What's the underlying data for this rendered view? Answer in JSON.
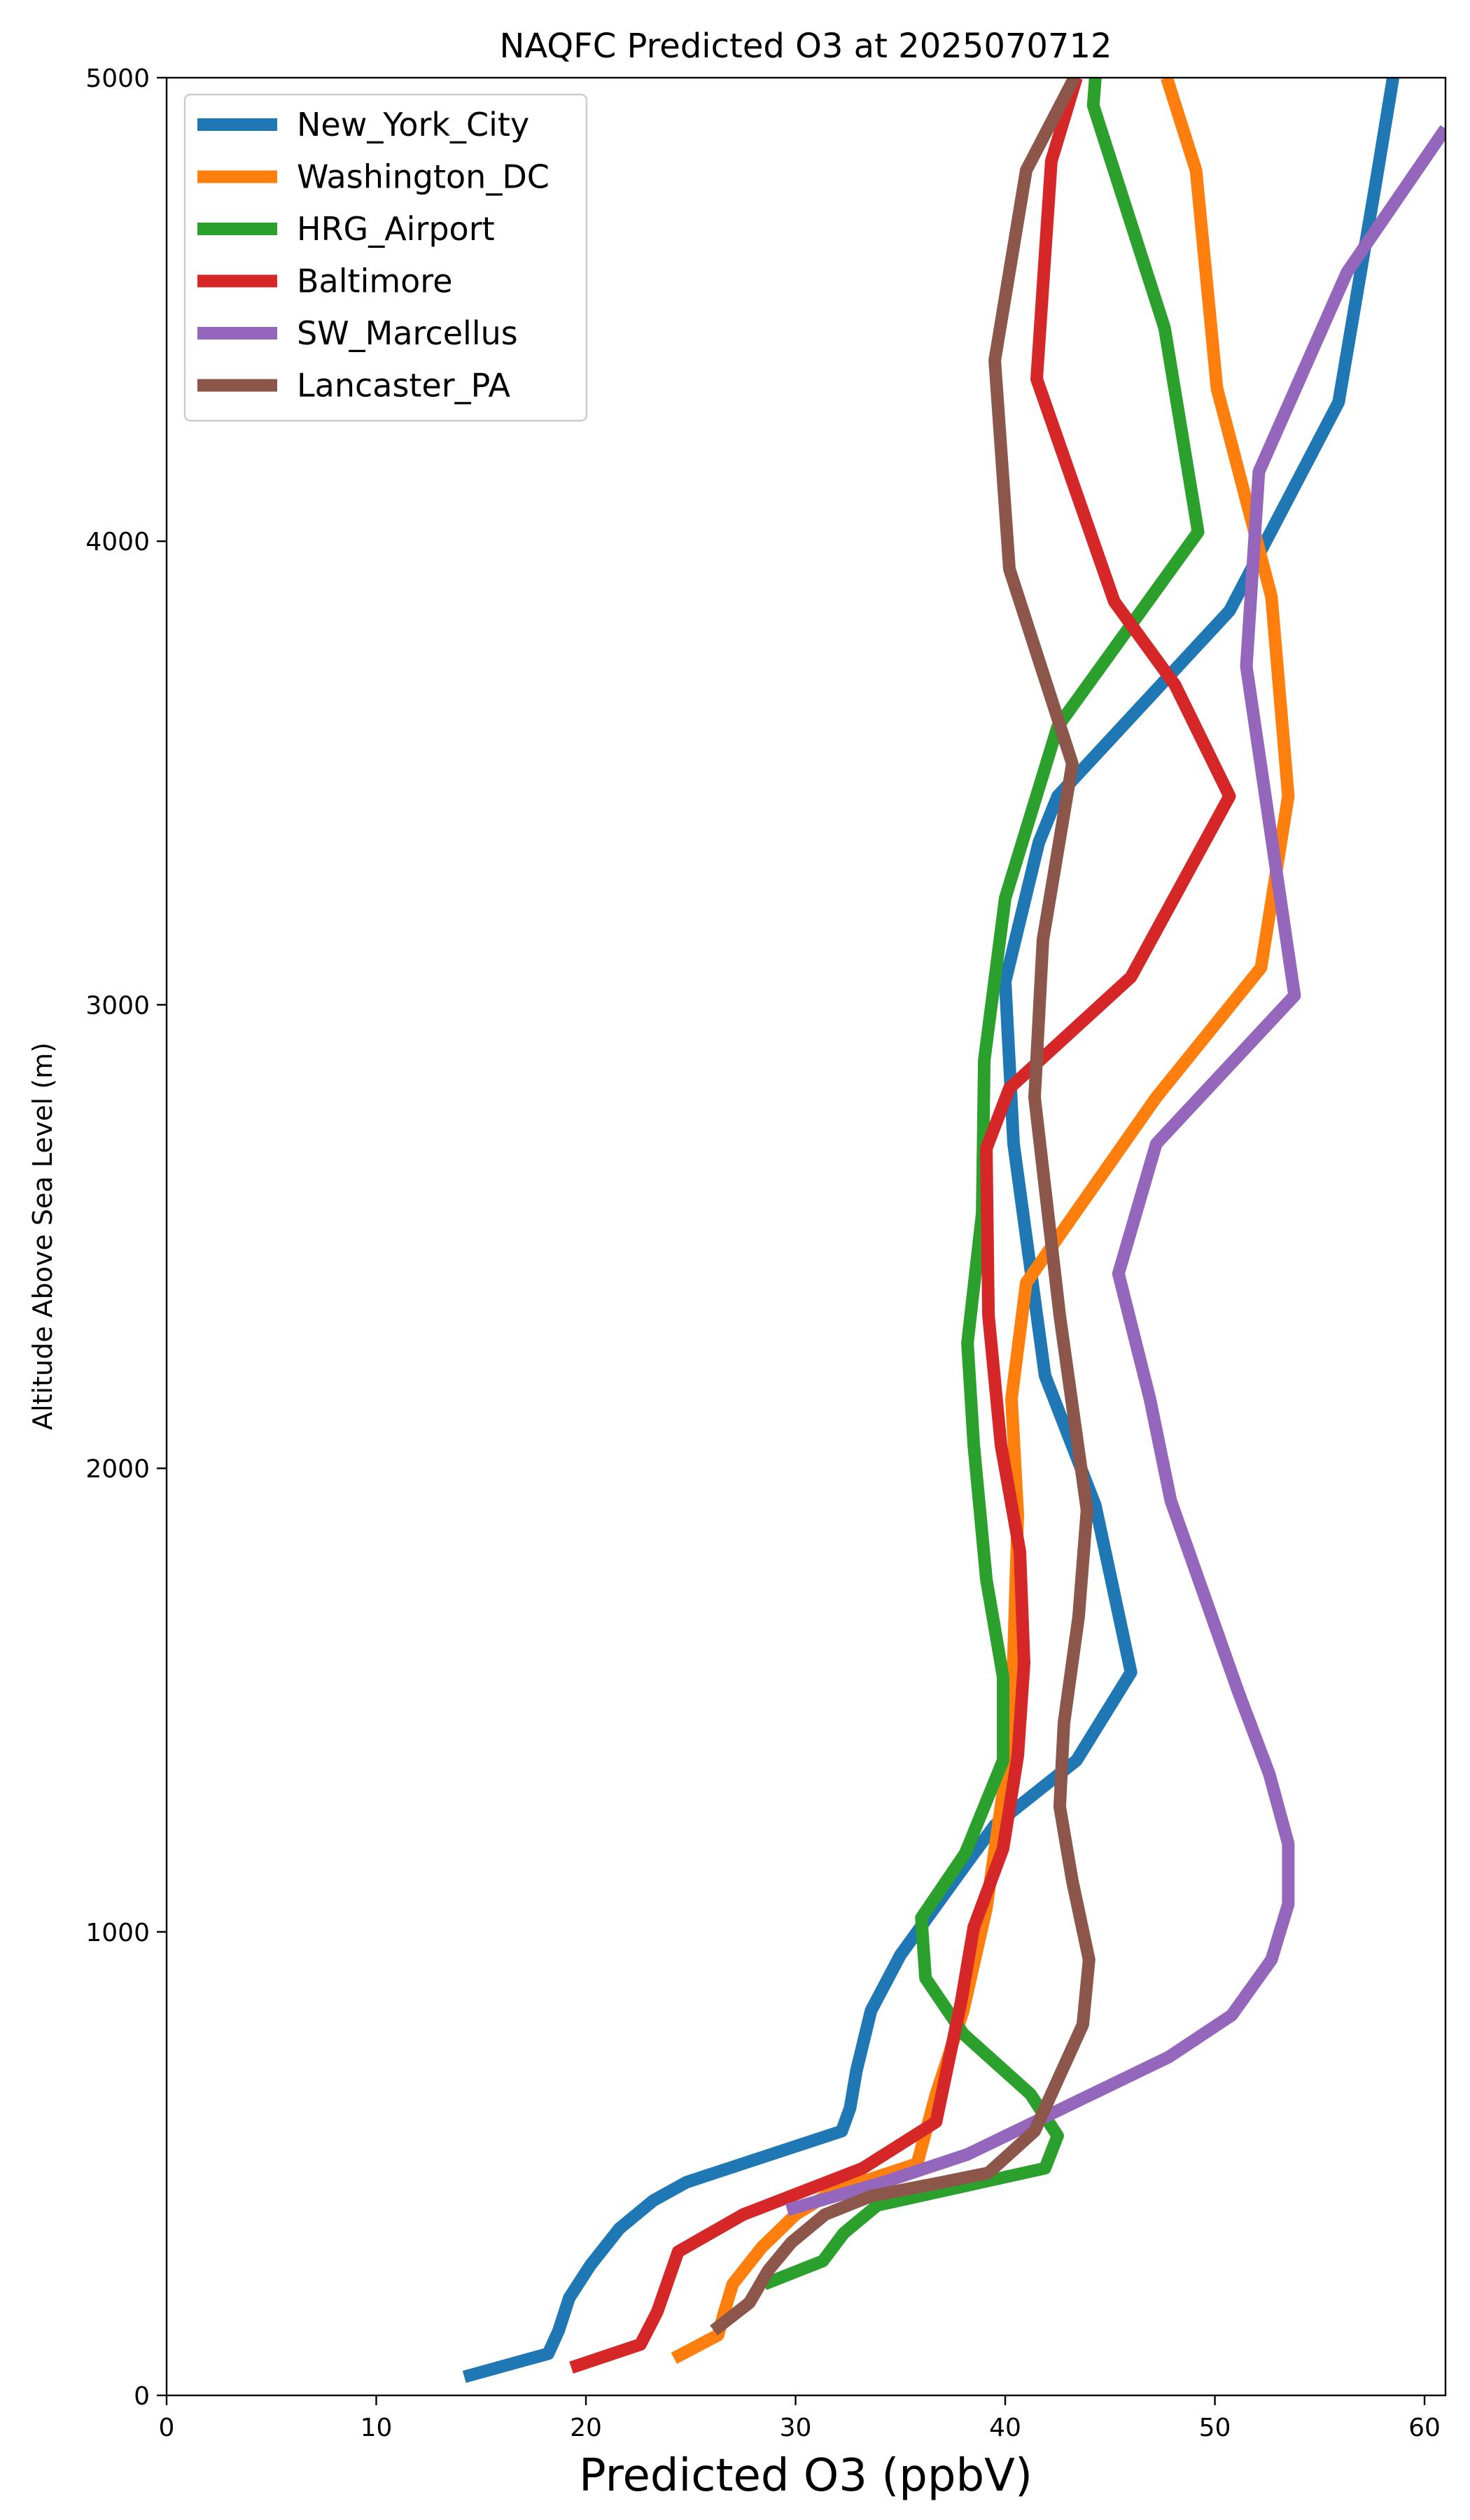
{
  "chart_data": {
    "type": "line",
    "title": "NAQFC Predicted O3 at 2025070712",
    "xlabel": "Predicted O3 (ppbV)",
    "ylabel": "Altitude Above Sea Level (m)",
    "xlim": [
      0,
      61
    ],
    "ylim": [
      0,
      5000
    ],
    "xticks": [
      0,
      10,
      20,
      30,
      40,
      50,
      60
    ],
    "yticks": [
      0,
      1000,
      2000,
      3000,
      4000,
      5000
    ],
    "grid": false,
    "legend_position": "top-left",
    "series": [
      {
        "name": "New_York_City",
        "color": "#1f77b4",
        "points": [
          [
            14.2,
            40
          ],
          [
            18.2,
            90
          ],
          [
            18.7,
            140
          ],
          [
            19.2,
            210
          ],
          [
            20.2,
            280
          ],
          [
            21.6,
            360
          ],
          [
            23.2,
            420
          ],
          [
            24.8,
            460
          ],
          [
            32.2,
            570
          ],
          [
            32.6,
            620
          ],
          [
            32.9,
            700
          ],
          [
            33.6,
            830
          ],
          [
            35.0,
            950
          ],
          [
            38.2,
            1150
          ],
          [
            39.5,
            1230
          ],
          [
            43.4,
            1370
          ],
          [
            46.0,
            1560
          ],
          [
            44.3,
            1920
          ],
          [
            41.9,
            2200
          ],
          [
            40.4,
            2700
          ],
          [
            40.0,
            3050
          ],
          [
            41.6,
            3350
          ],
          [
            42.5,
            3450
          ],
          [
            50.7,
            3850
          ],
          [
            55.9,
            4300
          ],
          [
            57.7,
            4780
          ],
          [
            58.5,
            5000
          ]
        ]
      },
      {
        "name": "Washington_DC",
        "color": "#ff7f0e",
        "points": [
          [
            24.2,
            80
          ],
          [
            26.3,
            130
          ],
          [
            26.6,
            180
          ],
          [
            27.0,
            240
          ],
          [
            28.4,
            320
          ],
          [
            30.0,
            390
          ],
          [
            31.8,
            440
          ],
          [
            35.8,
            500
          ],
          [
            36.7,
            650
          ],
          [
            38.0,
            830
          ],
          [
            39.1,
            1050
          ],
          [
            40.2,
            1400
          ],
          [
            40.4,
            1600
          ],
          [
            40.6,
            1900
          ],
          [
            40.3,
            2150
          ],
          [
            41.0,
            2400
          ],
          [
            44.1,
            2600
          ],
          [
            47.2,
            2800
          ],
          [
            52.2,
            3080
          ],
          [
            53.5,
            3450
          ],
          [
            52.7,
            3880
          ],
          [
            50.1,
            4330
          ],
          [
            49.1,
            4800
          ],
          [
            47.7,
            5000
          ]
        ]
      },
      {
        "name": "HRG_Airport",
        "color": "#2ca02c",
        "points": [
          [
            28.5,
            240
          ],
          [
            31.3,
            290
          ],
          [
            32.3,
            350
          ],
          [
            33.9,
            410
          ],
          [
            41.9,
            490
          ],
          [
            42.5,
            560
          ],
          [
            41.2,
            650
          ],
          [
            38.0,
            780
          ],
          [
            36.2,
            900
          ],
          [
            36.0,
            1030
          ],
          [
            38.1,
            1170
          ],
          [
            39.9,
            1370
          ],
          [
            39.9,
            1550
          ],
          [
            39.1,
            1760
          ],
          [
            38.5,
            2050
          ],
          [
            38.2,
            2270
          ],
          [
            38.9,
            2550
          ],
          [
            39.0,
            2880
          ],
          [
            40.0,
            3230
          ],
          [
            42.5,
            3600
          ],
          [
            49.2,
            4020
          ],
          [
            47.6,
            4460
          ],
          [
            44.2,
            4940
          ],
          [
            44.3,
            5000
          ]
        ]
      },
      {
        "name": "Baltimore",
        "color": "#d62728",
        "points": [
          [
            19.3,
            60
          ],
          [
            22.6,
            110
          ],
          [
            23.4,
            180
          ],
          [
            24.4,
            310
          ],
          [
            27.5,
            390
          ],
          [
            33.2,
            490
          ],
          [
            36.7,
            590
          ],
          [
            37.9,
            850
          ],
          [
            38.5,
            1010
          ],
          [
            39.9,
            1180
          ],
          [
            40.6,
            1380
          ],
          [
            40.9,
            1580
          ],
          [
            40.7,
            1820
          ],
          [
            39.8,
            2050
          ],
          [
            39.2,
            2330
          ],
          [
            39.1,
            2690
          ],
          [
            40.2,
            2820
          ],
          [
            46.0,
            3060
          ],
          [
            50.7,
            3450
          ],
          [
            48.1,
            3690
          ],
          [
            45.2,
            3870
          ],
          [
            41.5,
            4350
          ],
          [
            42.2,
            4820
          ],
          [
            43.4,
            5000
          ]
        ]
      },
      {
        "name": "SW_Marcellus",
        "color": "#9467bd",
        "points": [
          [
            29.6,
            400
          ],
          [
            34.2,
            460
          ],
          [
            38.2,
            520
          ],
          [
            41.4,
            590
          ],
          [
            47.8,
            730
          ],
          [
            50.8,
            820
          ],
          [
            52.7,
            940
          ],
          [
            53.5,
            1060
          ],
          [
            53.5,
            1190
          ],
          [
            52.6,
            1340
          ],
          [
            51.1,
            1520
          ],
          [
            47.9,
            1930
          ],
          [
            46.9,
            2150
          ],
          [
            45.4,
            2420
          ],
          [
            47.2,
            2700
          ],
          [
            53.8,
            3020
          ],
          [
            51.5,
            3730
          ],
          [
            52.1,
            4150
          ],
          [
            56.3,
            4580
          ],
          [
            61.0,
            4890
          ]
        ]
      },
      {
        "name": "Lancaster_PA",
        "color": "#8c564b",
        "points": [
          [
            26.1,
            140
          ],
          [
            27.8,
            200
          ],
          [
            28.7,
            270
          ],
          [
            29.8,
            330
          ],
          [
            31.4,
            390
          ],
          [
            33.6,
            430
          ],
          [
            37.0,
            460
          ],
          [
            39.2,
            480
          ],
          [
            41.4,
            570
          ],
          [
            42.5,
            680
          ],
          [
            43.7,
            800
          ],
          [
            44.0,
            940
          ],
          [
            43.2,
            1110
          ],
          [
            42.6,
            1270
          ],
          [
            42.8,
            1450
          ],
          [
            43.5,
            1680
          ],
          [
            43.9,
            1910
          ],
          [
            42.6,
            2330
          ],
          [
            41.4,
            2800
          ],
          [
            41.8,
            3140
          ],
          [
            43.2,
            3520
          ],
          [
            40.2,
            3940
          ],
          [
            39.5,
            4390
          ],
          [
            41.0,
            4800
          ],
          [
            43.3,
            5000
          ]
        ]
      }
    ]
  }
}
